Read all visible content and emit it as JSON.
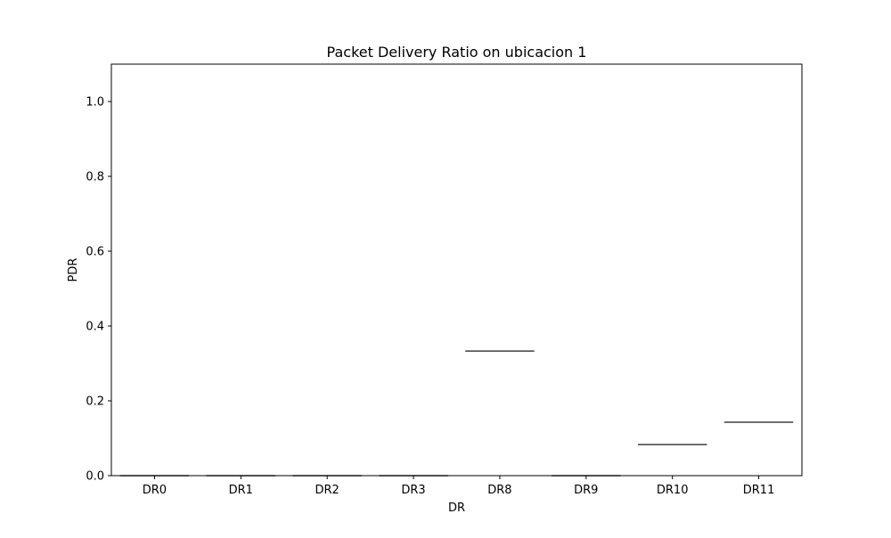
{
  "chart_data": {
    "type": "box",
    "title": "Packet Delivery Ratio on ubicacion 1",
    "xlabel": "DR",
    "ylabel": "PDR",
    "ylim": [
      0,
      1.1
    ],
    "yticks": [
      0.0,
      0.2,
      0.4,
      0.6,
      0.8,
      1.0
    ],
    "ytick_labels": [
      "0.0",
      "0.2",
      "0.4",
      "0.6",
      "0.8",
      "1.0"
    ],
    "categories": [
      "DR0",
      "DR1",
      "DR2",
      "DR3",
      "DR8",
      "DR9",
      "DR10",
      "DR11"
    ],
    "values": [
      0.0,
      0.0,
      0.0,
      0.0,
      0.333,
      0.0,
      0.083,
      0.143
    ],
    "grid": false,
    "colors": {
      "box_line": "#3f3f3f",
      "axes": "#000000",
      "background": "#ffffff"
    }
  }
}
